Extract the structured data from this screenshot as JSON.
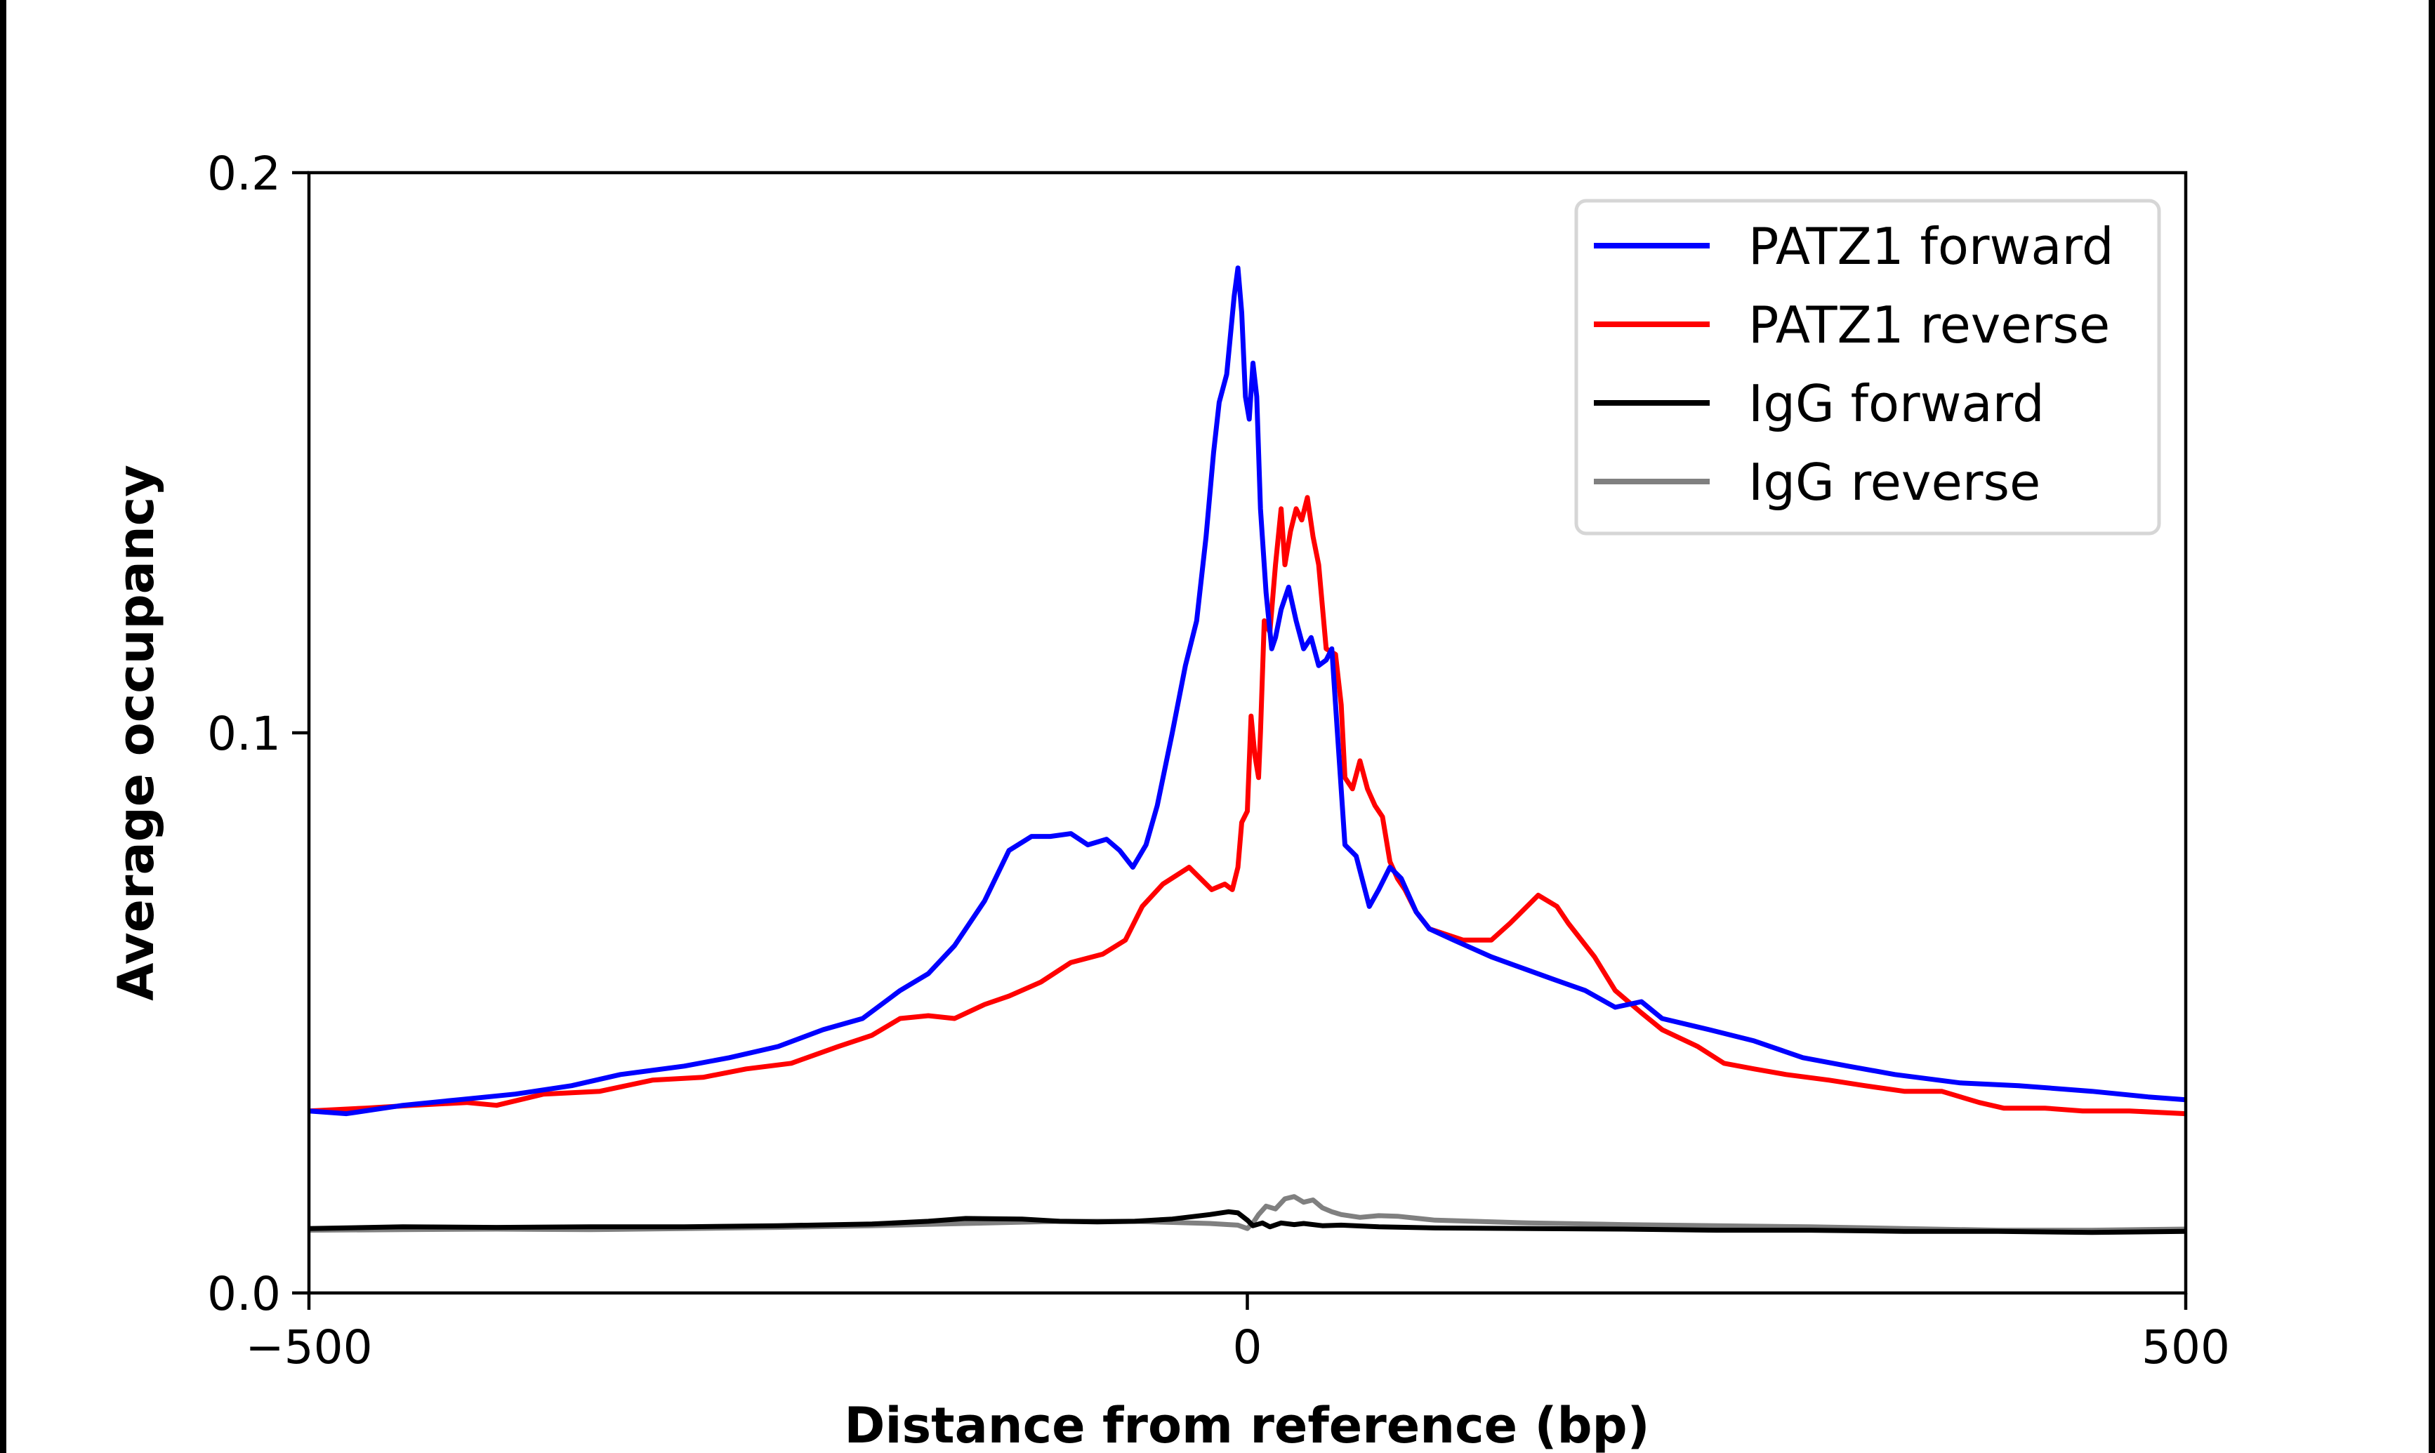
{
  "chart_data": {
    "type": "line",
    "title": "",
    "xlabel": "Distance from reference (bp)",
    "ylabel": "Average occupancy",
    "xlim": [
      -500,
      500
    ],
    "ylim": [
      0.0,
      0.2
    ],
    "xticks": [
      -500,
      0,
      500
    ],
    "xtick_labels": [
      "−500",
      "0",
      "500"
    ],
    "yticks": [
      0.0,
      0.1,
      0.2
    ],
    "ytick_labels": [
      "0.0",
      "0.1",
      "0.2"
    ],
    "grid": false,
    "legend_position": "top-right",
    "series": [
      {
        "name": "PATZ1 forward",
        "color": "#0000ff",
        "x": [
          -500,
          -480,
          -450,
          -420,
          -390,
          -360,
          -334,
          -300,
          -276,
          -250,
          -226,
          -205,
          -185,
          -170,
          -156,
          -140,
          -127,
          -115,
          -105,
          -94,
          -85,
          -75,
          -68,
          -61,
          -54,
          -48,
          -40,
          -33,
          -27,
          -22,
          -18,
          -15,
          -11,
          -7,
          -5,
          -3,
          -1,
          1,
          3,
          5,
          7,
          10,
          13,
          15,
          18,
          22,
          26,
          30,
          34,
          38,
          42,
          45,
          48,
          52,
          58,
          65,
          70,
          76,
          82,
          90,
          97,
          110,
          130,
          163,
          180,
          196,
          210,
          221,
          246,
          270,
          296,
          320,
          345,
          380,
          411,
          450,
          480,
          500
        ],
        "y": [
          0.0325,
          0.032,
          0.0335,
          0.0345,
          0.0355,
          0.037,
          0.039,
          0.0405,
          0.042,
          0.044,
          0.047,
          0.049,
          0.054,
          0.057,
          0.062,
          0.07,
          0.079,
          0.0815,
          0.0815,
          0.082,
          0.08,
          0.081,
          0.079,
          0.076,
          0.08,
          0.087,
          0.1,
          0.112,
          0.12,
          0.135,
          0.15,
          0.159,
          0.164,
          0.178,
          0.183,
          0.175,
          0.16,
          0.156,
          0.166,
          0.16,
          0.14,
          0.125,
          0.115,
          0.117,
          0.122,
          0.126,
          0.12,
          0.115,
          0.117,
          0.112,
          0.113,
          0.115,
          0.1,
          0.08,
          0.078,
          0.069,
          0.072,
          0.076,
          0.074,
          0.068,
          0.065,
          0.063,
          0.06,
          0.056,
          0.054,
          0.051,
          0.052,
          0.049,
          0.047,
          0.045,
          0.042,
          0.0405,
          0.039,
          0.0375,
          0.037,
          0.036,
          0.035,
          0.0345
        ]
      },
      {
        "name": "PATZ1 reverse",
        "color": "#ff0000",
        "x": [
          -500,
          -470,
          -445,
          -416,
          -400,
          -375,
          -345,
          -317,
          -290,
          -267,
          -243,
          -218,
          -200,
          -185,
          -170,
          -156,
          -140,
          -127,
          -110,
          -94,
          -77,
          -65,
          -56,
          -45,
          -31,
          -25,
          -19,
          -12,
          -8,
          -5,
          -3,
          0,
          2,
          4,
          6,
          7,
          9,
          12,
          15,
          18,
          20,
          23,
          26,
          29,
          32,
          35,
          38,
          42,
          47,
          50,
          52,
          56,
          60,
          64,
          68,
          72,
          76,
          80,
          84,
          90,
          97,
          115,
          130,
          140,
          155,
          165,
          171,
          185,
          196,
          210,
          221,
          240,
          254,
          270,
          287,
          310,
          329,
          350,
          370,
          390,
          403,
          425,
          445,
          470,
          500
        ],
        "y": [
          0.0325,
          0.033,
          0.0335,
          0.034,
          0.0335,
          0.0355,
          0.036,
          0.038,
          0.0385,
          0.04,
          0.041,
          0.044,
          0.046,
          0.049,
          0.0495,
          0.049,
          0.0515,
          0.053,
          0.0555,
          0.059,
          0.0605,
          0.063,
          0.069,
          0.073,
          0.076,
          0.074,
          0.072,
          0.073,
          0.072,
          0.076,
          0.084,
          0.086,
          0.103,
          0.096,
          0.092,
          0.1,
          0.12,
          0.118,
          0.13,
          0.14,
          0.13,
          0.136,
          0.14,
          0.138,
          0.142,
          0.135,
          0.13,
          0.115,
          0.114,
          0.105,
          0.092,
          0.09,
          0.095,
          0.09,
          0.087,
          0.085,
          0.077,
          0.074,
          0.072,
          0.068,
          0.065,
          0.063,
          0.063,
          0.066,
          0.071,
          0.069,
          0.066,
          0.06,
          0.054,
          0.05,
          0.047,
          0.044,
          0.041,
          0.04,
          0.039,
          0.038,
          0.037,
          0.036,
          0.036,
          0.034,
          0.033,
          0.033,
          0.0325,
          0.0325,
          0.032
        ]
      },
      {
        "name": "IgG forward",
        "color": "#000000",
        "x": [
          -500,
          -450,
          -400,
          -350,
          -300,
          -250,
          -200,
          -170,
          -150,
          -120,
          -100,
          -80,
          -60,
          -40,
          -20,
          -10,
          -5,
          0,
          3,
          8,
          12,
          18,
          25,
          30,
          40,
          50,
          70,
          100,
          150,
          200,
          250,
          300,
          350,
          400,
          450,
          500
        ],
        "y": [
          0.0115,
          0.0118,
          0.0117,
          0.0118,
          0.0118,
          0.012,
          0.0123,
          0.0128,
          0.0133,
          0.0132,
          0.0128,
          0.0127,
          0.0128,
          0.0132,
          0.014,
          0.0145,
          0.0143,
          0.013,
          0.012,
          0.0125,
          0.0118,
          0.0125,
          0.0122,
          0.0124,
          0.012,
          0.0121,
          0.0118,
          0.0116,
          0.0115,
          0.0114,
          0.0112,
          0.0112,
          0.011,
          0.011,
          0.0108,
          0.011
        ]
      },
      {
        "name": "IgG reverse",
        "color": "#808080",
        "x": [
          -500,
          -450,
          -400,
          -350,
          -300,
          -250,
          -200,
          -150,
          -100,
          -60,
          -40,
          -20,
          -10,
          -5,
          0,
          3,
          6,
          10,
          15,
          20,
          25,
          30,
          35,
          40,
          45,
          50,
          60,
          70,
          80,
          100,
          150,
          200,
          250,
          300,
          350,
          400,
          450,
          500
        ],
        "y": [
          0.0112,
          0.0113,
          0.0114,
          0.0113,
          0.0115,
          0.0117,
          0.012,
          0.0124,
          0.0128,
          0.0128,
          0.0126,
          0.0124,
          0.0122,
          0.0121,
          0.0115,
          0.0125,
          0.014,
          0.0155,
          0.015,
          0.0168,
          0.0172,
          0.0162,
          0.0166,
          0.0152,
          0.0145,
          0.014,
          0.0135,
          0.0138,
          0.0137,
          0.013,
          0.0125,
          0.0122,
          0.012,
          0.0118,
          0.0115,
          0.0112,
          0.0112,
          0.0114
        ]
      }
    ]
  }
}
